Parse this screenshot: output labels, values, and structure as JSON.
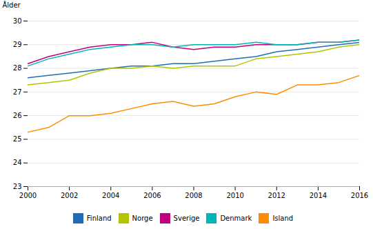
{
  "chart_data": {
    "type": "line",
    "ylabel": "Ålder",
    "x": [
      2000,
      2001,
      2002,
      2003,
      2004,
      2005,
      2006,
      2007,
      2008,
      2009,
      2010,
      2011,
      2012,
      2013,
      2014,
      2015,
      2016
    ],
    "series": [
      {
        "name": "Finland",
        "color": "#1F6DB5",
        "values": [
          27.6,
          27.7,
          27.8,
          27.9,
          28.0,
          28.1,
          28.1,
          28.2,
          28.2,
          28.3,
          28.4,
          28.5,
          28.7,
          28.8,
          28.9,
          29.0,
          29.1
        ]
      },
      {
        "name": "Norge",
        "color": "#B5C400",
        "values": [
          27.3,
          27.4,
          27.5,
          27.8,
          28.0,
          28.0,
          28.1,
          28.0,
          28.1,
          28.1,
          28.1,
          28.4,
          28.5,
          28.6,
          28.7,
          28.9,
          29.0
        ]
      },
      {
        "name": "Sverige",
        "color": "#C0007C",
        "values": [
          28.2,
          28.5,
          28.7,
          28.9,
          29.0,
          29.0,
          29.1,
          28.9,
          28.8,
          28.9,
          28.9,
          29.0,
          29.0,
          29.0,
          29.1,
          29.1,
          29.2
        ]
      },
      {
        "name": "Denmark",
        "color": "#00B5B5",
        "values": [
          28.1,
          28.4,
          28.6,
          28.8,
          28.9,
          29.0,
          29.0,
          28.9,
          29.0,
          29.0,
          29.0,
          29.1,
          29.0,
          29.0,
          29.1,
          29.1,
          29.2
        ]
      },
      {
        "name": "Island",
        "color": "#FF8C00",
        "values": [
          25.3,
          25.5,
          26.0,
          26.0,
          26.1,
          26.3,
          26.5,
          26.6,
          26.4,
          26.5,
          26.8,
          27.0,
          26.9,
          27.3,
          27.3,
          27.4,
          27.7
        ]
      }
    ],
    "xlim": [
      2000,
      2016
    ],
    "xticks": [
      2000,
      2002,
      2004,
      2006,
      2008,
      2010,
      2012,
      2014,
      2016
    ],
    "ylim": [
      23,
      30
    ],
    "yticks": [
      23,
      24,
      25,
      26,
      27,
      28,
      29,
      30
    ],
    "grid": "y",
    "legend": "bottom"
  }
}
